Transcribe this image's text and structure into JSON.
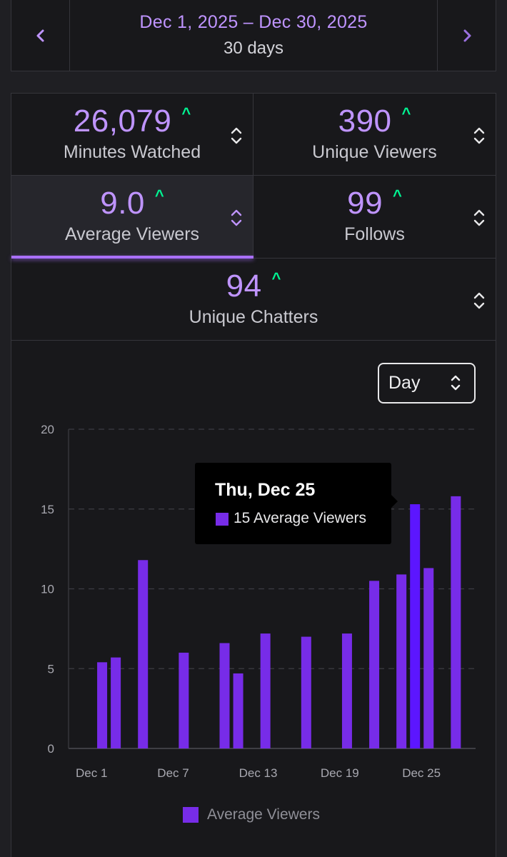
{
  "date_range": {
    "range": "Dec 1, 2025 – Dec 30, 2025",
    "length": "30 days",
    "prev_icon": "chevron-left-icon",
    "next_icon": "chevron-right-icon"
  },
  "stats": [
    {
      "value": "26,079",
      "label": "Minutes Watched"
    },
    {
      "value": "390",
      "label": "Unique Viewers"
    },
    {
      "value": "9.0",
      "label": "Average Viewers"
    },
    {
      "value": "99",
      "label": "Follows"
    },
    {
      "value": "94",
      "label": "Unique Chatters"
    }
  ],
  "trend_glyph": "^",
  "granularity": {
    "selected": "Day"
  },
  "tooltip": {
    "title": "Thu, Dec 25",
    "text": "15 Average Viewers"
  },
  "legend": {
    "label": "Average Viewers"
  },
  "colors": {
    "accent": "#bf94ff",
    "bar": "#772ce8",
    "bar_highlight": "#5c16ff",
    "trend_up": "#00f593"
  },
  "chart_data": {
    "type": "bar",
    "title": "Average Viewers",
    "xlabel": "",
    "ylabel": "",
    "ylim": [
      0,
      20
    ],
    "yticks": [
      0,
      5,
      10,
      15,
      20
    ],
    "xtick_labels": [
      "Dec 1",
      "Dec 7",
      "Dec 13",
      "Dec 19",
      "Dec 25"
    ],
    "xtick_days": [
      1,
      7,
      13,
      19,
      25
    ],
    "categories": [
      "Dec 1",
      "Dec 2",
      "Dec 3",
      "Dec 4",
      "Dec 5",
      "Dec 6",
      "Dec 7",
      "Dec 8",
      "Dec 9",
      "Dec 10",
      "Dec 11",
      "Dec 12",
      "Dec 13",
      "Dec 14",
      "Dec 15",
      "Dec 16",
      "Dec 17",
      "Dec 18",
      "Dec 19",
      "Dec 20",
      "Dec 21",
      "Dec 22",
      "Dec 23",
      "Dec 24",
      "Dec 25",
      "Dec 26",
      "Dec 27",
      "Dec 28",
      "Dec 29",
      "Dec 30"
    ],
    "values": [
      0,
      5.4,
      5.7,
      0,
      11.8,
      0,
      0,
      6.0,
      0,
      0,
      6.6,
      4.7,
      0,
      7.2,
      0,
      0,
      7.0,
      0,
      0,
      7.2,
      0,
      10.5,
      0,
      10.9,
      15.3,
      11.3,
      0,
      15.8,
      0,
      0
    ],
    "highlight_day": 25,
    "grid": true,
    "legend_position": "bottom"
  }
}
